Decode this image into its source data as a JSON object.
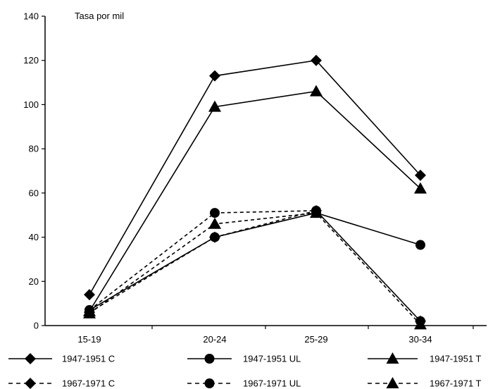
{
  "chart_data": {
    "type": "line",
    "title": "",
    "ylabel": "Tasa por mil",
    "xlabel": "",
    "categories": [
      "15-19",
      "20-24",
      "25-29",
      "30-34"
    ],
    "ylim": [
      0,
      140
    ],
    "yticks": [
      0,
      20,
      40,
      60,
      80,
      100,
      120,
      140
    ],
    "grid": false,
    "legend_position": "bottom",
    "series": [
      {
        "name": "1947-1951 C",
        "values": [
          14,
          113,
          120,
          68
        ],
        "marker": "diamond",
        "line": "solid",
        "color": "#000000"
      },
      {
        "name": "1947-1951 UL",
        "values": [
          7,
          40,
          51,
          36.5
        ],
        "marker": "circle",
        "line": "solid",
        "color": "#000000"
      },
      {
        "name": "1947-1951 T",
        "values": [
          6.5,
          99,
          106,
          62
        ],
        "marker": "triangle",
        "line": "solid",
        "color": "#000000"
      },
      {
        "name": "1967-1971 C",
        "values": [
          6,
          40,
          52,
          2
        ],
        "marker": "diamond",
        "line": "dashed",
        "color": "#000000"
      },
      {
        "name": "1967-1971 UL",
        "values": [
          7,
          51,
          52,
          2
        ],
        "marker": "circle",
        "line": "dashed",
        "color": "#000000"
      },
      {
        "name": "1967-1971 T",
        "values": [
          5.5,
          46,
          51,
          0.5
        ],
        "marker": "triangle",
        "line": "dashed",
        "color": "#000000"
      }
    ]
  }
}
